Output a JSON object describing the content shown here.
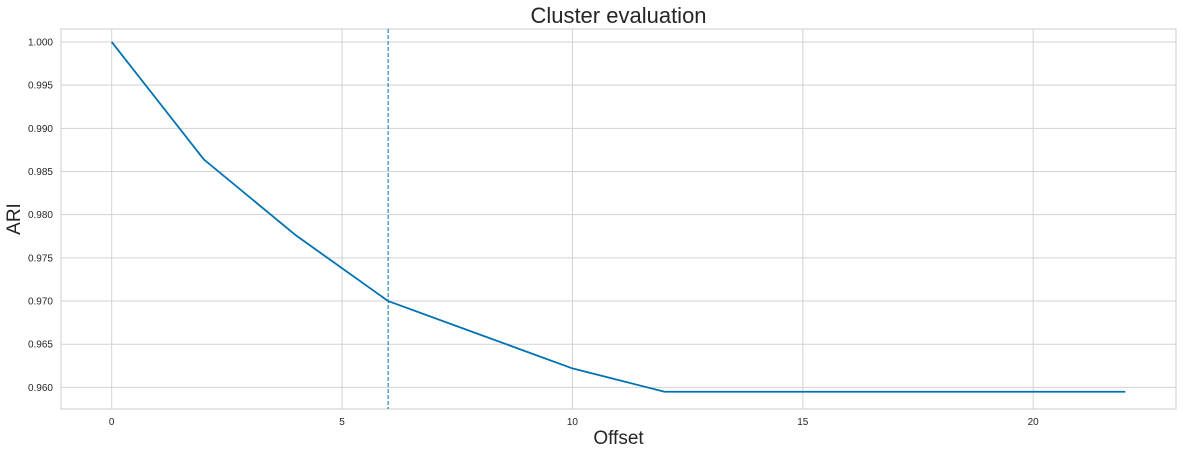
{
  "chart_data": {
    "type": "line",
    "title": "Cluster evaluation",
    "xlabel": "Offset",
    "ylabel": "ARI",
    "xlim": [
      -1.1,
      23.1
    ],
    "ylim": [
      0.9575,
      1.0015
    ],
    "xticks": [
      0,
      5,
      10,
      15,
      20
    ],
    "yticks": [
      0.96,
      0.965,
      0.97,
      0.975,
      0.98,
      0.985,
      0.99,
      0.995,
      1.0
    ],
    "ytick_labels": [
      "0.960",
      "0.965",
      "0.970",
      "0.975",
      "0.980",
      "0.985",
      "0.990",
      "0.995",
      "1.000"
    ],
    "grid": true,
    "series": [
      {
        "color": "#0072b2",
        "x": [
          0,
          2,
          4,
          6,
          8,
          10,
          12,
          14,
          16,
          18,
          20,
          22
        ],
        "values": [
          1.0,
          0.9864,
          0.9776,
          0.97,
          0.9661,
          0.9622,
          0.9595,
          0.9595,
          0.9595,
          0.9595,
          0.9595,
          0.9595
        ]
      }
    ],
    "vline": {
      "x": 6,
      "style": "dashed",
      "color": "#0072b2"
    }
  }
}
